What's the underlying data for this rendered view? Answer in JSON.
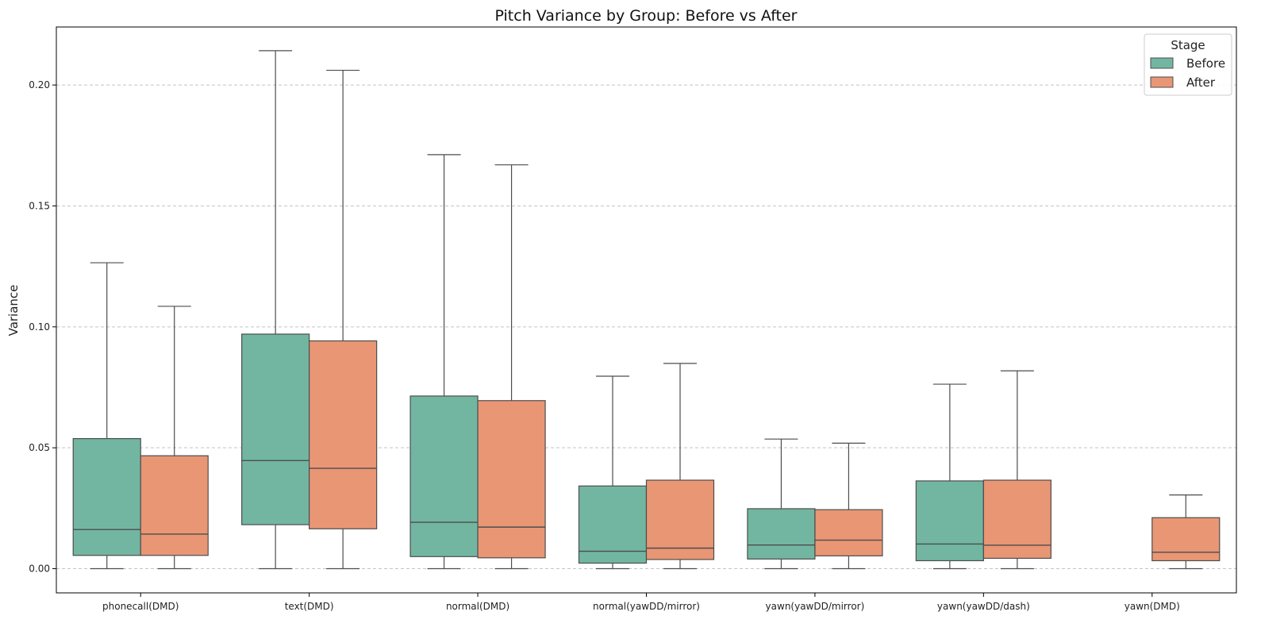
{
  "chart_data": {
    "type": "box",
    "title": "Pitch Variance by Group: Before vs After",
    "xlabel": "",
    "ylabel": "Variance",
    "ylim": [
      -0.01,
      0.224
    ],
    "yticks": [
      0.0,
      0.05,
      0.1,
      0.15,
      0.2
    ],
    "ytick_labels": [
      "0.00",
      "0.05",
      "0.10",
      "0.15",
      "0.20"
    ],
    "grid": "horizontal-dashed",
    "legend": {
      "title": "Stage",
      "position": "top-right"
    },
    "categories": [
      "phonecall(DMD)",
      "text(DMD)",
      "normal(DMD)",
      "normal(yawDD/mirror)",
      "yawn(yawDD/mirror)",
      "yawn(yawDD/dash)",
      "yawn(DMD)"
    ],
    "series": [
      {
        "name": "Before",
        "color": "#72b6a1",
        "boxes": [
          {
            "whislo": 0.0,
            "q1": 0.0055,
            "med": 0.0162,
            "q3": 0.0538,
            "whishi": 0.1265
          },
          {
            "whislo": 0.0,
            "q1": 0.0182,
            "med": 0.0447,
            "q3": 0.097,
            "whishi": 0.2142
          },
          {
            "whislo": 0.0,
            "q1": 0.005,
            "med": 0.0192,
            "q3": 0.0714,
            "whishi": 0.1712
          },
          {
            "whislo": 0.0,
            "q1": 0.0023,
            "med": 0.0072,
            "q3": 0.0342,
            "whishi": 0.0796
          },
          {
            "whislo": 0.0,
            "q1": 0.004,
            "med": 0.0098,
            "q3": 0.0248,
            "whishi": 0.0536
          },
          {
            "whislo": 0.0,
            "q1": 0.0033,
            "med": 0.0102,
            "q3": 0.0363,
            "whishi": 0.0763
          },
          null
        ]
      },
      {
        "name": "After",
        "color": "#e99675",
        "boxes": [
          {
            "whislo": 0.0,
            "q1": 0.0055,
            "med": 0.0143,
            "q3": 0.0467,
            "whishi": 0.1085
          },
          {
            "whislo": 0.0,
            "q1": 0.0165,
            "med": 0.0415,
            "q3": 0.0942,
            "whishi": 0.2061
          },
          {
            "whislo": 0.0,
            "q1": 0.0045,
            "med": 0.0172,
            "q3": 0.0695,
            "whishi": 0.167
          },
          {
            "whislo": 0.0,
            "q1": 0.0038,
            "med": 0.0085,
            "q3": 0.0366,
            "whishi": 0.0849
          },
          {
            "whislo": 0.0,
            "q1": 0.0053,
            "med": 0.0118,
            "q3": 0.0244,
            "whishi": 0.0519
          },
          {
            "whislo": 0.0,
            "q1": 0.0043,
            "med": 0.0097,
            "q3": 0.0366,
            "whishi": 0.0818
          },
          {
            "whislo": 0.0,
            "q1": 0.0033,
            "med": 0.0068,
            "q3": 0.0211,
            "whishi": 0.0305
          }
        ]
      }
    ]
  }
}
